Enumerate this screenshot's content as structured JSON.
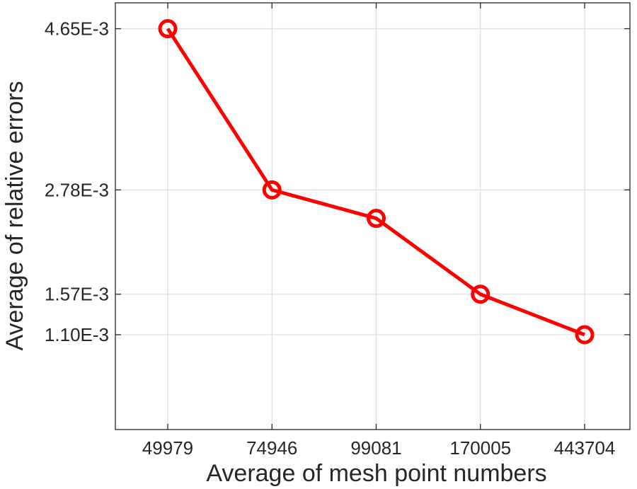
{
  "chart_data": {
    "type": "line",
    "categories": [
      "49979",
      "74946",
      "99081",
      "170005",
      "443704"
    ],
    "series": [
      {
        "values": [
          0.00465,
          0.00278,
          0.00245,
          0.00157,
          0.0011
        ],
        "color": "#ff0000",
        "marker": "circle"
      }
    ],
    "yticks": [
      0.0011,
      0.00157,
      0.00278,
      0.00465
    ],
    "ytick_labels": [
      "1.10E-3",
      "1.57E-3",
      "2.78E-3",
      "4.65E-3"
    ],
    "xlabel": "Average of mesh point numbers",
    "ylabel": "Average of relative errors",
    "ylim": [
      0.0,
      0.00495
    ],
    "grid": true
  }
}
